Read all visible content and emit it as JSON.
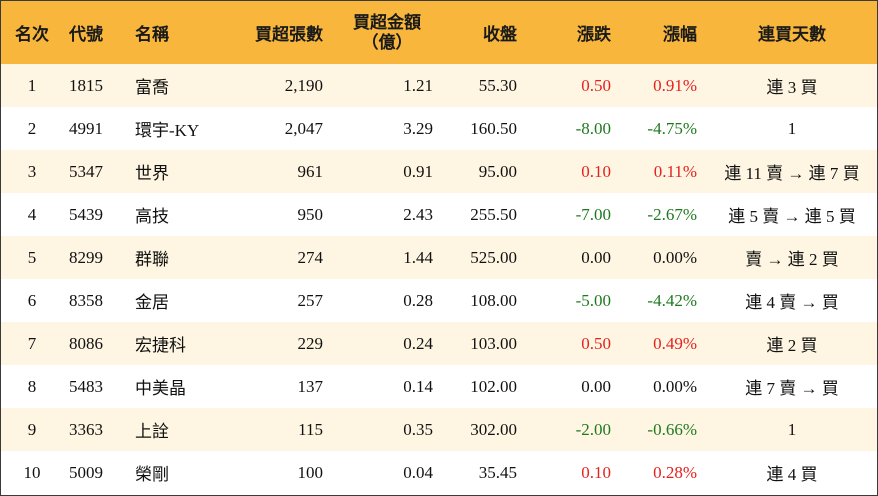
{
  "columns": {
    "rank": "名次",
    "code": "代號",
    "name": "名稱",
    "shares": "買超張數",
    "amount_line1": "買超金額",
    "amount_line2": "（億）",
    "close": "收盤",
    "change": "漲跌",
    "pct": "漲幅",
    "days": "連買天數"
  },
  "colors": {
    "header_bg": "#f8b73c",
    "row_alt_bg": "#fef6e3",
    "up": "#e5201f",
    "down": "#1f7a1f"
  },
  "rows": [
    {
      "rank": "1",
      "code": "1815",
      "name": "富喬",
      "shares": "2,190",
      "amount": "1.21",
      "close": "55.30",
      "change": "0.50",
      "pct": "0.91%",
      "days": "連 3 買",
      "trend": "up"
    },
    {
      "rank": "2",
      "code": "4991",
      "name": "環宇-KY",
      "shares": "2,047",
      "amount": "3.29",
      "close": "160.50",
      "change": "-8.00",
      "pct": "-4.75%",
      "days": "1",
      "trend": "down"
    },
    {
      "rank": "3",
      "code": "5347",
      "name": "世界",
      "shares": "961",
      "amount": "0.91",
      "close": "95.00",
      "change": "0.10",
      "pct": "0.11%",
      "days": "連 11 賣 → 連 7 買",
      "trend": "up"
    },
    {
      "rank": "4",
      "code": "5439",
      "name": "高技",
      "shares": "950",
      "amount": "2.43",
      "close": "255.50",
      "change": "-7.00",
      "pct": "-2.67%",
      "days": "連 5 賣 → 連 5 買",
      "trend": "down"
    },
    {
      "rank": "5",
      "code": "8299",
      "name": "群聯",
      "shares": "274",
      "amount": "1.44",
      "close": "525.00",
      "change": "0.00",
      "pct": "0.00%",
      "days": "賣 → 連 2 買",
      "trend": "flat"
    },
    {
      "rank": "6",
      "code": "8358",
      "name": "金居",
      "shares": "257",
      "amount": "0.28",
      "close": "108.00",
      "change": "-5.00",
      "pct": "-4.42%",
      "days": "連 4 賣 → 買",
      "trend": "down"
    },
    {
      "rank": "7",
      "code": "8086",
      "name": "宏捷科",
      "shares": "229",
      "amount": "0.24",
      "close": "103.00",
      "change": "0.50",
      "pct": "0.49%",
      "days": "連 2 買",
      "trend": "up"
    },
    {
      "rank": "8",
      "code": "5483",
      "name": "中美晶",
      "shares": "137",
      "amount": "0.14",
      "close": "102.00",
      "change": "0.00",
      "pct": "0.00%",
      "days": "連 7 賣 → 買",
      "trend": "flat"
    },
    {
      "rank": "9",
      "code": "3363",
      "name": "上詮",
      "shares": "115",
      "amount": "0.35",
      "close": "302.00",
      "change": "-2.00",
      "pct": "-0.66%",
      "days": "1",
      "trend": "down"
    },
    {
      "rank": "10",
      "code": "5009",
      "name": "榮剛",
      "shares": "100",
      "amount": "0.04",
      "close": "35.45",
      "change": "0.10",
      "pct": "0.28%",
      "days": "連 4 買",
      "trend": "up"
    }
  ]
}
